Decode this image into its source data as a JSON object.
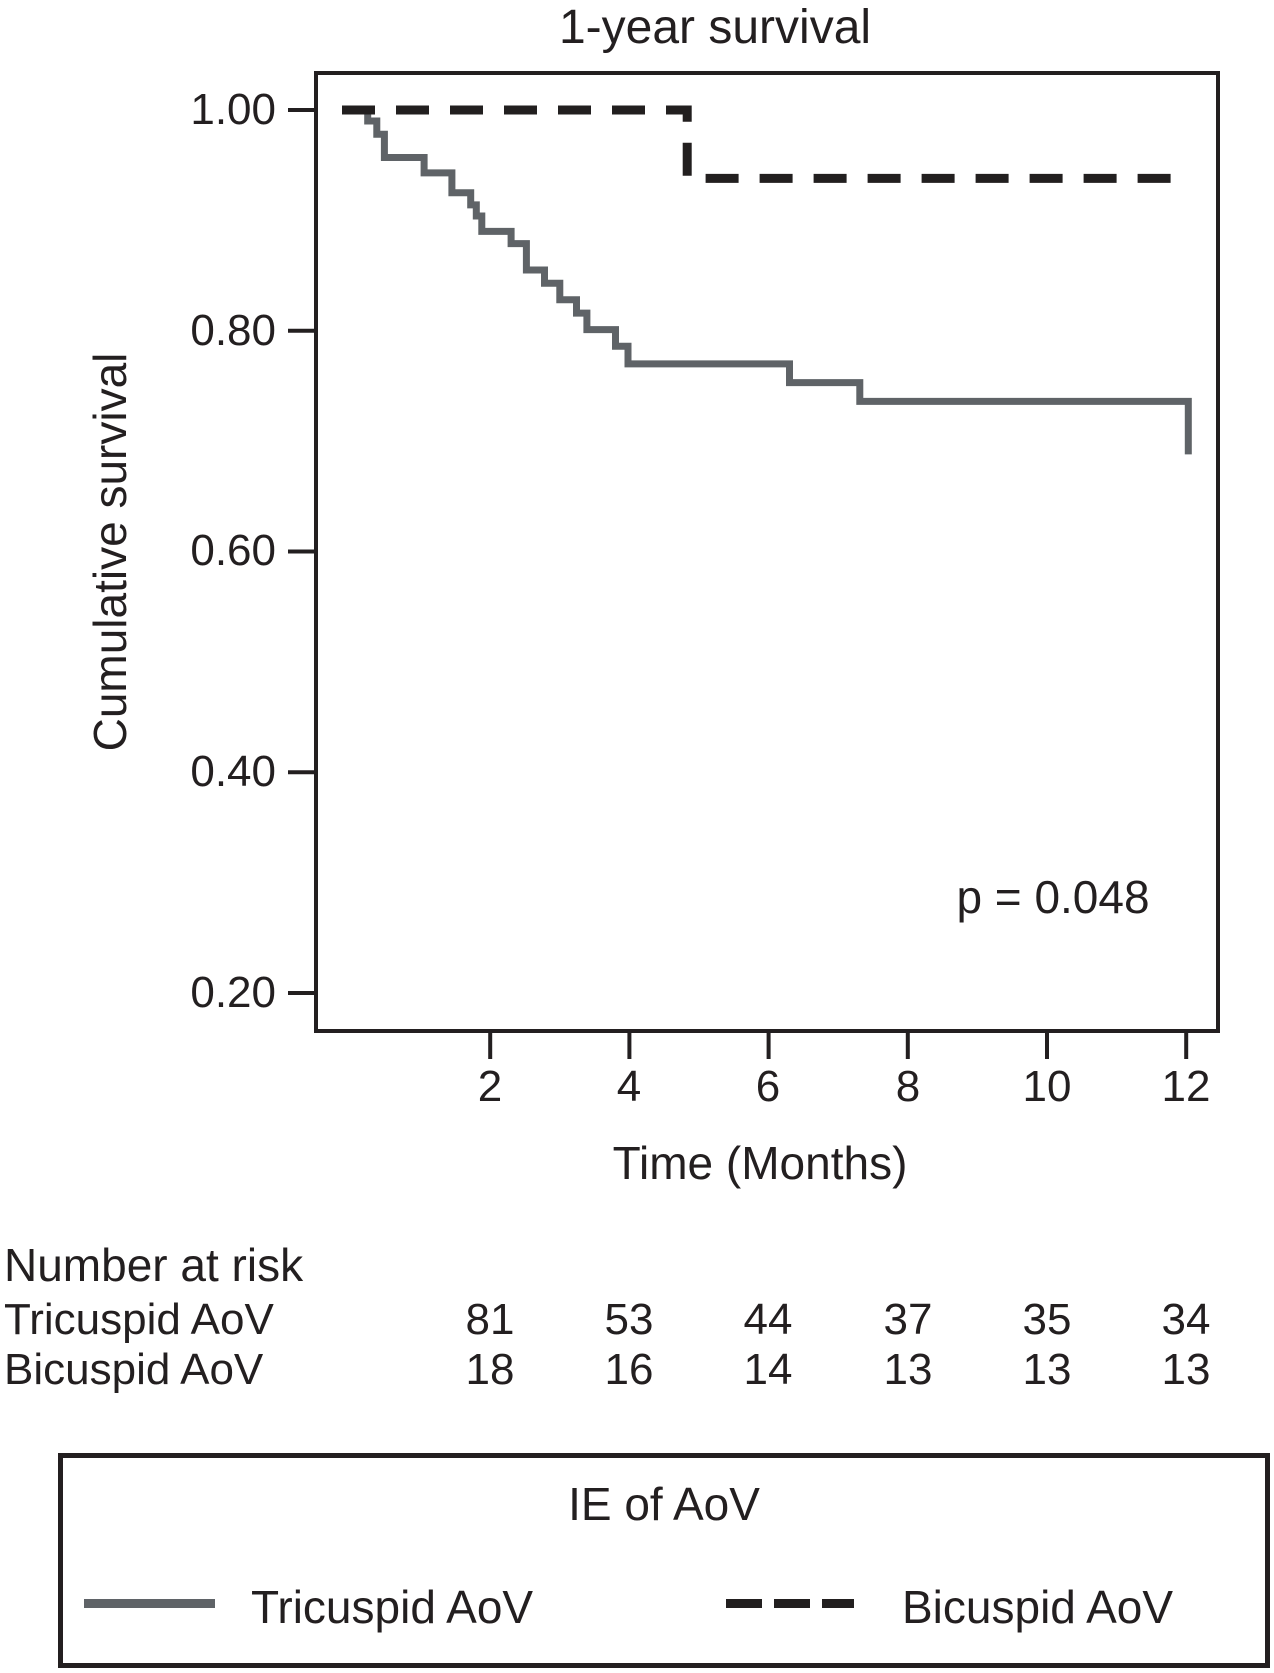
{
  "title": "1-year survival",
  "annotation": {
    "p_value": "p = 0.048"
  },
  "axes": {
    "y_label": "Cumulative survival",
    "x_label": "Time (Months)",
    "y_tick_labels": [
      "1.00",
      "0.80",
      "0.60",
      "0.40",
      "0.20"
    ],
    "x_tick_labels": [
      "2",
      "4",
      "6",
      "8",
      "10",
      "12"
    ]
  },
  "chart_data": {
    "type": "line",
    "subtype": "kaplan-meier-step",
    "title": "1-year survival",
    "xlabel": "Time (Months)",
    "ylabel": "Cumulative survival",
    "xlim": [
      -0.5,
      12.45
    ],
    "ylim": [
      0.167,
      1.034
    ],
    "x_ticks": [
      2,
      4,
      6,
      8,
      10,
      12
    ],
    "y_ticks": [
      1.0,
      0.8,
      0.6,
      0.4,
      0.2
    ],
    "grid": false,
    "legend_position": "bottom",
    "annotation": "p = 0.048",
    "series": [
      {
        "name": "Tricuspid AoV",
        "line_style": "solid",
        "color": "#5f6367",
        "stroke_width": 7,
        "start": [
          -0.13,
          1.0
        ],
        "drops": [
          [
            0.24,
            0.99
          ],
          [
            0.37,
            0.978
          ],
          [
            0.48,
            0.957
          ],
          [
            1.05,
            0.943
          ],
          [
            1.45,
            0.925
          ],
          [
            1.72,
            0.914
          ],
          [
            1.8,
            0.904
          ],
          [
            1.88,
            0.89
          ],
          [
            2.3,
            0.879
          ],
          [
            2.52,
            0.855
          ],
          [
            2.78,
            0.843
          ],
          [
            3.0,
            0.828
          ],
          [
            3.24,
            0.816
          ],
          [
            3.39,
            0.801
          ],
          [
            3.8,
            0.786
          ],
          [
            3.98,
            0.77
          ],
          [
            6.3,
            0.753
          ],
          [
            7.31,
            0.736
          ],
          [
            12.03,
            0.688
          ]
        ],
        "end_x": 12.03
      },
      {
        "name": "Bicuspid AoV",
        "line_style": "dashed",
        "color": "#221f1f",
        "stroke_width": 9,
        "dash": [
          33,
          21
        ],
        "start": [
          -0.13,
          1.0
        ],
        "drops": [
          [
            4.83,
            0.938
          ]
        ],
        "end_x": 11.98
      }
    ]
  },
  "at_risk": {
    "heading": "Number at risk",
    "time_points": [
      2,
      4,
      6,
      8,
      10,
      12
    ],
    "rows": [
      {
        "label": "Tricuspid AoV",
        "values": [
          81,
          53,
          44,
          37,
          35,
          34
        ]
      },
      {
        "label": "Bicuspid AoV",
        "values": [
          18,
          16,
          14,
          13,
          13,
          13
        ]
      }
    ]
  },
  "legend": {
    "title": "IE of AoV",
    "entries": [
      {
        "label": "Tricuspid AoV",
        "line_style": "solid",
        "color": "#5f6367"
      },
      {
        "label": "Bicuspid AoV",
        "line_style": "dashed",
        "color": "#221f1f"
      }
    ]
  },
  "colors": {
    "background": "#ffffff",
    "axis": "#231f20",
    "text": "#231f20",
    "tricuspid": "#5f6367",
    "bicuspid": "#221f1f"
  }
}
